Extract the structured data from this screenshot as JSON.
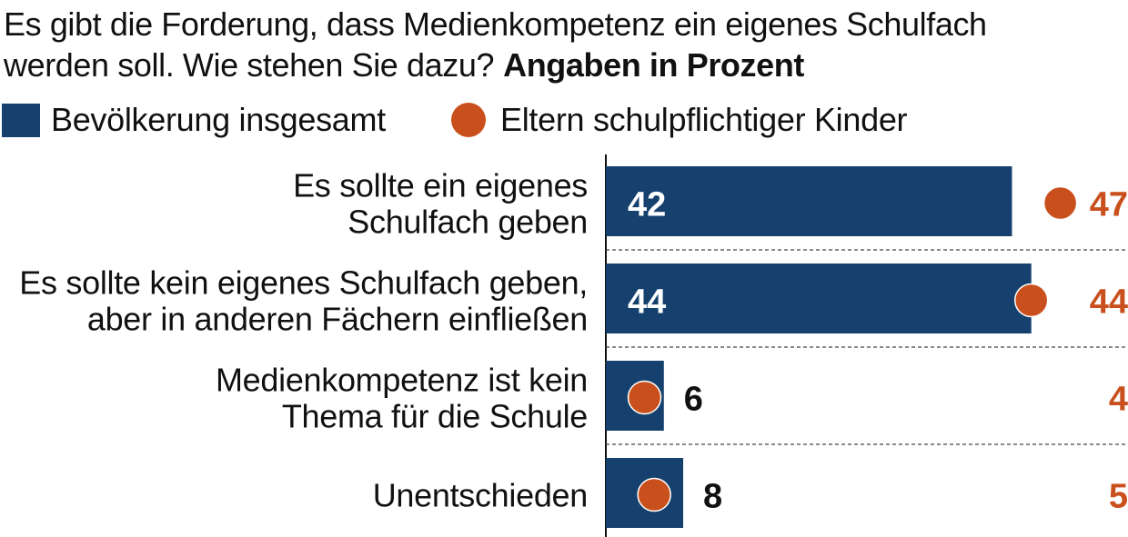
{
  "chart_data": {
    "type": "bar",
    "title_lines": [
      "Es gibt die Forderung, dass Medienkompetenz ein eigenes Schulfach",
      "werden soll. Wie stehen Sie dazu?"
    ],
    "title_note": "Angaben in Prozent",
    "categories": [
      [
        "Es sollte ein eigenes",
        "Schulfach geben"
      ],
      [
        "Es sollte kein eigenes Schulfach geben,",
        "aber in anderen Fächern einfließen"
      ],
      [
        "Medienkompetenz ist kein",
        "Thema für die Schule"
      ],
      [
        "Unentschieden"
      ]
    ],
    "series": [
      {
        "name": "Bevölkerung insgesamt",
        "mark": "bar",
        "color": "#16416e",
        "values": [
          42,
          44,
          6,
          8
        ]
      },
      {
        "name": "Eltern schulpflichtiger Kinder",
        "mark": "dot",
        "color": "#c9501c",
        "values": [
          47,
          44,
          4,
          5
        ]
      }
    ],
    "xlim": [
      0,
      50
    ],
    "legend_position": "top-left",
    "grid": false
  }
}
